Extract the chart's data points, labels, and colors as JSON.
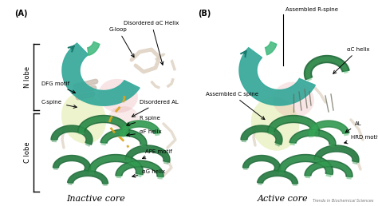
{
  "fig_width": 4.74,
  "fig_height": 2.58,
  "dpi": 100,
  "bg_color": "#ffffff",
  "teal_dark": "#1a7a6e",
  "teal_mid": "#2a9d8f",
  "teal_light": "#4dc4b5",
  "green_dark": "#1e6b38",
  "green_mid": "#2e8b4a",
  "green_bright": "#3aad5a",
  "green_light": "#74c88a",
  "green_pale": "#a8d8b0",
  "beige_dark": "#b8a898",
  "beige_mid": "#c8b8a8",
  "beige_light": "#ddd0c0",
  "yellow_blob": "#d8e890",
  "pink_blob": "#e8a8a8",
  "pink_light": "#f0c8c8",
  "label_fs": 5.0,
  "title_fs": 8.0,
  "bracket_fs": 6.0,
  "panel_A": {
    "label": "(A)",
    "title": "Inactive core",
    "nlobe": "N lobe",
    "clobe": "C lobe"
  },
  "panel_B": {
    "label": "(B)",
    "title": "Active core"
  },
  "journal": "Trends in Biochemical Sciences"
}
